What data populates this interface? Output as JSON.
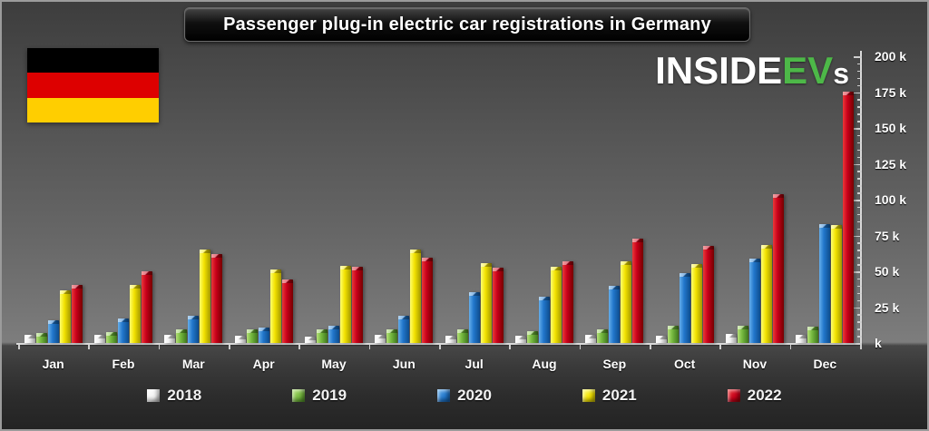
{
  "title": "Passenger plug-in electric car registrations in Germany",
  "logo": {
    "text_white_1": "INSIDE",
    "text_green": "EV",
    "text_white_2": "s",
    "green_color": "#4db848"
  },
  "flag": {
    "country": "Germany",
    "stripe_colors": [
      "#000000",
      "#dd0000",
      "#ffce00"
    ]
  },
  "chart_data": {
    "type": "bar",
    "title": "Passenger plug-in electric car registrations in Germany",
    "unit": "thousands of registrations (k)",
    "categories": [
      "Jan",
      "Feb",
      "Mar",
      "Apr",
      "May",
      "Jun",
      "Jul",
      "Aug",
      "Sep",
      "Oct",
      "Nov",
      "Dec"
    ],
    "series": [
      {
        "name": "2018",
        "color": "#f2f2f2",
        "color_light": "#ffffff",
        "color_dark": "#9e9e9e",
        "values": [
          5.5,
          5.5,
          6,
          5,
          4.5,
          5.5,
          5,
          5,
          5.5,
          5,
          6.5,
          5.5
        ]
      },
      {
        "name": "2019",
        "color": "#76b93f",
        "color_light": "#b4e077",
        "color_dark": "#3e761c",
        "values": [
          7,
          7.5,
          9.5,
          9.5,
          9.5,
          9.5,
          9.5,
          8.5,
          9.5,
          12,
          12,
          11.5
        ]
      },
      {
        "name": "2020",
        "color": "#2277cc",
        "color_light": "#66aeea",
        "color_dark": "#0d4d8e",
        "values": [
          16,
          17,
          19,
          10.5,
          12,
          19,
          35.5,
          32.5,
          40,
          48.5,
          59,
          83
        ]
      },
      {
        "name": "2021",
        "color": "#f2e200",
        "color_light": "#ffff6e",
        "color_dark": "#a39700",
        "values": [
          37,
          40.5,
          65.5,
          51,
          53.5,
          65,
          56,
          53,
          57,
          55,
          68.5,
          82
        ]
      },
      {
        "name": "2022",
        "color": "#c8001a",
        "color_light": "#ea3a3a",
        "color_dark": "#760000",
        "values": [
          40.5,
          50,
          62,
          44,
          53,
          59.5,
          52.5,
          57,
          73,
          68,
          103.5,
          175.5
        ]
      }
    ],
    "ylim": [
      0,
      200
    ],
    "y_major_step": 25,
    "y_minor_step": 5,
    "y_tick_labels": [
      "200 k",
      "175 k",
      "150 k",
      "125 k",
      "100 k",
      "75 k",
      "50 k",
      "25 k",
      "k"
    ],
    "axis_side": "right",
    "legend_position": "bottom",
    "grid": false
  }
}
